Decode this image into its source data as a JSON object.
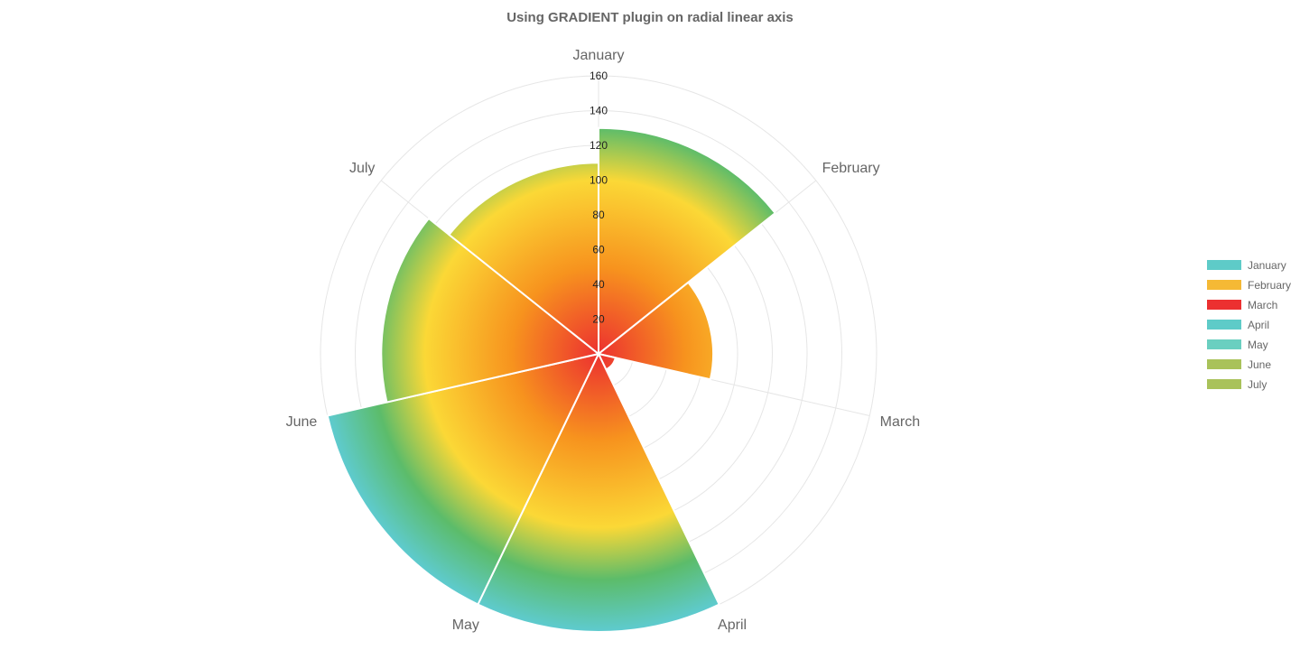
{
  "chart_data": {
    "type": "polarArea",
    "title": "Using GRADIENT plugin on radial linear axis",
    "categories": [
      "January",
      "February",
      "March",
      "April",
      "May",
      "June",
      "July"
    ],
    "values": [
      130,
      66,
      10,
      160,
      160,
      125,
      110
    ],
    "r_ticks": [
      20,
      40,
      60,
      80,
      100,
      120,
      140,
      160
    ],
    "r_min": 0,
    "r_max": 160,
    "grid": true,
    "legend": {
      "position": "right",
      "entries": [
        {
          "label": "January",
          "color": "#5ecbc8"
        },
        {
          "label": "February",
          "color": "#f5b935"
        },
        {
          "label": "March",
          "color": "#ec3030"
        },
        {
          "label": "April",
          "color": "#5ecbc8"
        },
        {
          "label": "May",
          "color": "#6acfc0"
        },
        {
          "label": "June",
          "color": "#a9c25a"
        },
        {
          "label": "July",
          "color": "#a9c25a"
        }
      ]
    },
    "gradient_stops": [
      {
        "value": 0,
        "color": "#ec3030"
      },
      {
        "value": 50,
        "color": "#f7931e"
      },
      {
        "value": 100,
        "color": "#fbd836"
      },
      {
        "value": 130,
        "color": "#5cbc6a"
      },
      {
        "value": 160,
        "color": "#5ecbd0"
      }
    ]
  }
}
